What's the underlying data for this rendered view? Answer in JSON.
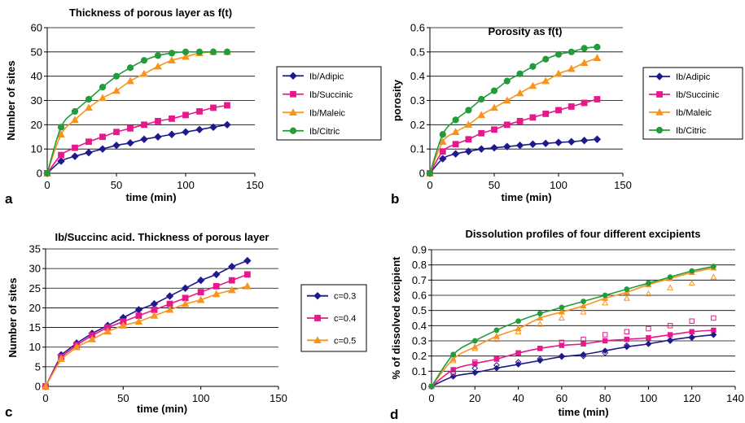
{
  "chart_data": [
    {
      "type": "line",
      "panel_letter": "a",
      "title": "Thickness of porous layer as f(t)",
      "xlabel": "time (min)",
      "ylabel": "Number of sites",
      "xlim": [
        0,
        150
      ],
      "ylim": [
        0,
        60
      ],
      "xticks": [
        "0",
        "50",
        "100",
        "150"
      ],
      "yticks": [
        "0",
        "10",
        "20",
        "30",
        "40",
        "50",
        "60"
      ],
      "grid": "horizontal",
      "legend_position": "right",
      "x": [
        0,
        10,
        20,
        30,
        40,
        50,
        60,
        70,
        80,
        90,
        100,
        110,
        120,
        130
      ],
      "series": [
        {
          "name": "Ib/Adipic",
          "color": "#1f1a8c",
          "marker": "diamond",
          "line": "smooth",
          "values": [
            0,
            5,
            7,
            8.5,
            10,
            11.5,
            12.5,
            14,
            15,
            16,
            17,
            18,
            19,
            20
          ]
        },
        {
          "name": "Ib/Succinic",
          "color": "#e6198c",
          "marker": "square",
          "line": "smooth",
          "values": [
            0,
            7.5,
            10.5,
            13,
            15,
            17,
            18.5,
            20,
            21.5,
            22.5,
            24,
            25.5,
            27,
            28
          ]
        },
        {
          "name": "Ib/Maleic",
          "color": "#f7941d",
          "marker": "triangle",
          "line": "smooth",
          "values": [
            0,
            16,
            22,
            27,
            31,
            34,
            38,
            41,
            44,
            46.5,
            48,
            49.5,
            50,
            50
          ]
        },
        {
          "name": "Ib/Citric",
          "color": "#239b3a",
          "marker": "circle",
          "line": "smooth",
          "values": [
            0,
            19,
            25.5,
            30.5,
            35.5,
            40,
            43.5,
            46.5,
            48.5,
            49.5,
            50,
            50,
            50,
            50
          ]
        }
      ]
    },
    {
      "type": "line",
      "panel_letter": "b",
      "title": "Porosity as f(t)",
      "xlabel": "time (min)",
      "ylabel": "porosity",
      "xlim": [
        0,
        150
      ],
      "ylim": [
        0,
        0.6
      ],
      "xticks": [
        "0",
        "50",
        "100",
        "150"
      ],
      "yticks": [
        "0",
        "0.1",
        "0.2",
        "0.3",
        "0.4",
        "0.5",
        "0.6"
      ],
      "grid": "horizontal",
      "legend_position": "right",
      "x": [
        0,
        10,
        20,
        30,
        40,
        50,
        60,
        70,
        80,
        90,
        100,
        110,
        120,
        130
      ],
      "series": [
        {
          "name": "Ib/Adipic",
          "color": "#1f1a8c",
          "marker": "diamond",
          "line": "smooth",
          "values": [
            0,
            0.06,
            0.08,
            0.09,
            0.1,
            0.105,
            0.11,
            0.115,
            0.12,
            0.123,
            0.127,
            0.13,
            0.135,
            0.14
          ]
        },
        {
          "name": "Ib/Succinic",
          "color": "#e6198c",
          "marker": "square",
          "line": "smooth",
          "values": [
            0,
            0.09,
            0.12,
            0.14,
            0.165,
            0.18,
            0.2,
            0.215,
            0.23,
            0.245,
            0.26,
            0.275,
            0.29,
            0.305
          ]
        },
        {
          "name": "Ib/Maleic",
          "color": "#f7941d",
          "marker": "triangle",
          "line": "smooth",
          "values": [
            0,
            0.13,
            0.17,
            0.2,
            0.24,
            0.27,
            0.3,
            0.33,
            0.36,
            0.38,
            0.41,
            0.43,
            0.455,
            0.475
          ]
        },
        {
          "name": "Ib/Citric",
          "color": "#239b3a",
          "marker": "circle",
          "line": "smooth",
          "values": [
            0,
            0.16,
            0.22,
            0.26,
            0.305,
            0.34,
            0.38,
            0.41,
            0.44,
            0.47,
            0.49,
            0.5,
            0.515,
            0.52
          ]
        }
      ]
    },
    {
      "type": "line",
      "panel_letter": "c",
      "title": "Ib/Succinc acid. Thickness of porous layer",
      "xlabel": "time (min)",
      "ylabel": "Number of sites",
      "xlim": [
        0,
        150
      ],
      "ylim": [
        0,
        35
      ],
      "xticks": [
        "0",
        "50",
        "100",
        "150"
      ],
      "yticks": [
        "0",
        "5",
        "10",
        "15",
        "20",
        "25",
        "30",
        "35"
      ],
      "grid": "horizontal",
      "legend_position": "right",
      "x": [
        0,
        10,
        20,
        30,
        40,
        50,
        60,
        70,
        80,
        90,
        100,
        110,
        120,
        130
      ],
      "series": [
        {
          "name": "c=0.3",
          "color": "#1f1a8c",
          "marker": "diamond",
          "line": "straight",
          "values": [
            0,
            8,
            11,
            13.5,
            15.5,
            17.5,
            19.5,
            21,
            23,
            25,
            27,
            28.5,
            30.5,
            32
          ]
        },
        {
          "name": "c=0.4",
          "color": "#e6198c",
          "marker": "square",
          "line": "straight",
          "values": [
            0,
            7.5,
            10.5,
            13,
            15,
            16.5,
            18,
            19.5,
            21,
            22.5,
            24,
            25.5,
            27,
            28.5
          ]
        },
        {
          "name": "c=0.5",
          "color": "#f7941d",
          "marker": "triangle",
          "line": "straight",
          "values": [
            0,
            7,
            10,
            12,
            14,
            15.5,
            16.5,
            18,
            19.5,
            21,
            22,
            23.5,
            24.5,
            25.5
          ]
        }
      ]
    },
    {
      "type": "scatter",
      "panel_letter": "d",
      "title": "Dissolution profiles of four different excipients",
      "xlabel": "time (min)",
      "ylabel": "% of dissolved excipient",
      "xlim": [
        0,
        140
      ],
      "ylim": [
        0,
        0.9
      ],
      "xticks": [
        "0",
        "20",
        "40",
        "60",
        "80",
        "100",
        "120",
        "140"
      ],
      "yticks": [
        "0",
        "0.1",
        "0.2",
        "0.3",
        "0.4",
        "0.5",
        "0.6",
        "0.7",
        "0.8",
        "0.9"
      ],
      "grid": "horizontal",
      "x": [
        0,
        10,
        20,
        30,
        40,
        50,
        60,
        70,
        80,
        90,
        100,
        110,
        120,
        130
      ],
      "series": [
        {
          "color": "#1f1a8c",
          "marker": "diamond",
          "line": "smooth",
          "values": [
            0,
            0.065,
            0.09,
            0.12,
            0.145,
            0.17,
            0.195,
            0.21,
            0.235,
            0.26,
            0.28,
            0.305,
            0.325,
            0.34
          ]
        },
        {
          "color": "#e6198c",
          "marker": "square",
          "line": "smooth",
          "values": [
            0,
            0.11,
            0.15,
            0.18,
            0.22,
            0.25,
            0.27,
            0.28,
            0.3,
            0.31,
            0.32,
            0.34,
            0.36,
            0.37
          ]
        },
        {
          "color": "#f7941d",
          "marker": "triangle",
          "line": "smooth",
          "values": [
            0,
            0.18,
            0.26,
            0.33,
            0.38,
            0.45,
            0.49,
            0.53,
            0.58,
            0.62,
            0.67,
            0.71,
            0.75,
            0.78
          ]
        },
        {
          "color": "#239b3a",
          "marker": "circle",
          "line": "smooth",
          "values": [
            0,
            0.21,
            0.3,
            0.37,
            0.43,
            0.48,
            0.52,
            0.56,
            0.6,
            0.64,
            0.68,
            0.72,
            0.76,
            0.79
          ]
        },
        {
          "color": "#1f1a8c",
          "marker": "diamond-open",
          "line": "none",
          "values": [
            null,
            0.09,
            0.12,
            0.14,
            0.16,
            0.18,
            0.2,
            0.2,
            0.22,
            0.27,
            0.28,
            0.3,
            0.32,
            0.34
          ]
        },
        {
          "color": "#e6198c",
          "marker": "square-open",
          "line": "none",
          "values": [
            null,
            0.09,
            0.16,
            0.18,
            0.22,
            0.25,
            0.29,
            0.31,
            0.34,
            0.36,
            0.38,
            0.4,
            0.43,
            0.45
          ]
        },
        {
          "color": "#f7941d",
          "marker": "triangle-open",
          "line": "none",
          "values": [
            null,
            0.17,
            0.25,
            0.31,
            0.36,
            0.41,
            0.45,
            0.49,
            0.55,
            0.58,
            0.61,
            0.65,
            0.68,
            0.72
          ]
        }
      ]
    }
  ]
}
